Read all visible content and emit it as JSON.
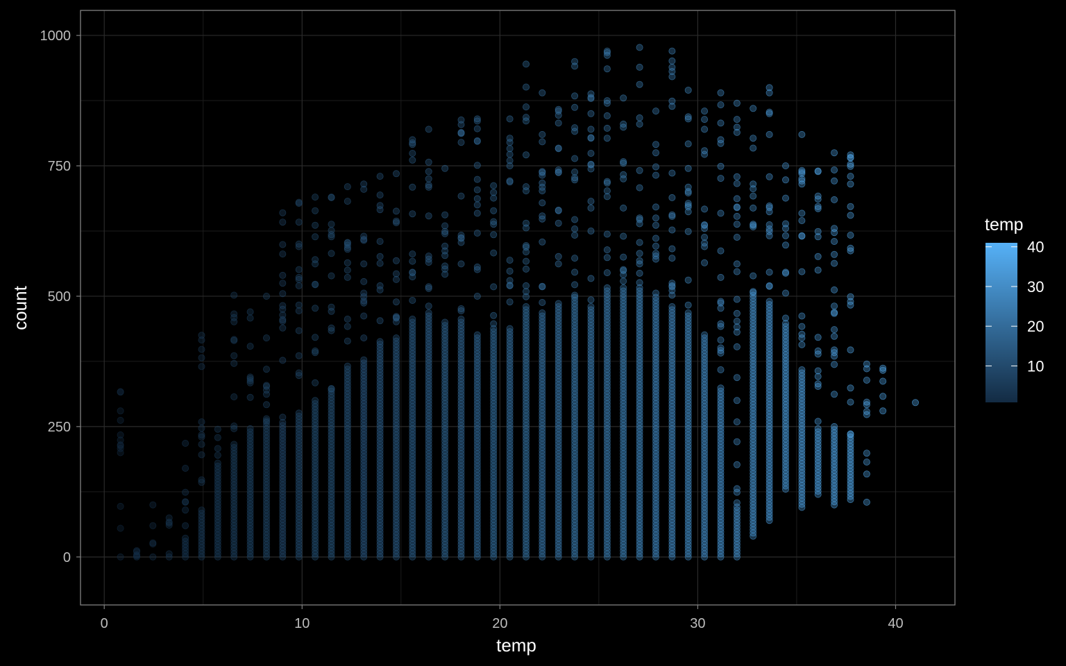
{
  "chart_data": {
    "type": "scatter",
    "xlabel": "temp",
    "ylabel": "count",
    "xlim": [
      -1.2,
      43
    ],
    "ylim": [
      -92,
      1048
    ],
    "x_ticks": [
      0,
      10,
      20,
      30,
      40
    ],
    "x_tick_labels": [
      "0",
      "10",
      "20",
      "30",
      "40"
    ],
    "y_ticks": [
      0,
      250,
      500,
      750,
      1000
    ],
    "y_tick_labels": [
      "0",
      "250",
      "500",
      "750",
      "1000"
    ],
    "grid": true,
    "background": "#000000",
    "panel_border": "#808080",
    "grid_color": "#2b2b2b",
    "point_alpha": 0.35,
    "legend": {
      "title": "temp",
      "placement": "right",
      "type": "colorbar",
      "ticks": [
        10,
        20,
        30,
        40
      ],
      "tick_labels": [
        "10",
        "20",
        "30",
        "40"
      ],
      "range": [
        0.82,
        41
      ],
      "low_color": "#132B43",
      "high_color": "#56B1F7"
    },
    "temp_levels": [
      0.82,
      1.64,
      2.46,
      3.28,
      4.1,
      4.92,
      5.74,
      6.56,
      7.38,
      8.2,
      9.02,
      9.84,
      10.66,
      11.48,
      12.3,
      13.12,
      13.94,
      14.76,
      15.58,
      16.4,
      17.22,
      18.04,
      18.86,
      19.68,
      20.5,
      21.32,
      22.14,
      22.96,
      23.78,
      24.6,
      25.42,
      26.24,
      27.06,
      27.88,
      28.7,
      29.52,
      30.34,
      31.16,
      31.98,
      32.8,
      33.62,
      34.44,
      35.26,
      36.08,
      36.9,
      37.72,
      38.54,
      39.36,
      41.0
    ],
    "count_max_by_temp": [
      317,
      12,
      100,
      75,
      218,
      425,
      245,
      502,
      470,
      500,
      660,
      680,
      690,
      690,
      710,
      715,
      730,
      735,
      800,
      820,
      745,
      838,
      840,
      712,
      840,
      945,
      890,
      858,
      950,
      888,
      970,
      880,
      977,
      855,
      970,
      895,
      855,
      890,
      870,
      860,
      900,
      750,
      810,
      740,
      775,
      771,
      370,
      362,
      296
    ],
    "count_dense_by_temp": [
      0,
      0,
      5,
      10,
      40,
      90,
      180,
      220,
      250,
      260,
      260,
      270,
      300,
      320,
      370,
      380,
      410,
      420,
      460,
      470,
      450,
      460,
      430,
      440,
      440,
      480,
      470,
      490,
      500,
      480,
      520,
      520,
      520,
      500,
      480,
      470,
      430,
      320,
      100,
      500,
      490,
      450,
      360,
      250,
      250,
      230,
      0,
      0,
      0
    ],
    "count_min_by_temp": [
      0,
      0,
      0,
      0,
      0,
      0,
      0,
      0,
      0,
      0,
      0,
      0,
      0,
      0,
      0,
      0,
      0,
      0,
      0,
      0,
      0,
      0,
      0,
      0,
      0,
      0,
      0,
      0,
      0,
      0,
      0,
      0,
      0,
      0,
      0,
      0,
      0,
      0,
      0,
      40,
      70,
      130,
      95,
      120,
      100,
      110,
      105,
      280,
      296
    ]
  }
}
